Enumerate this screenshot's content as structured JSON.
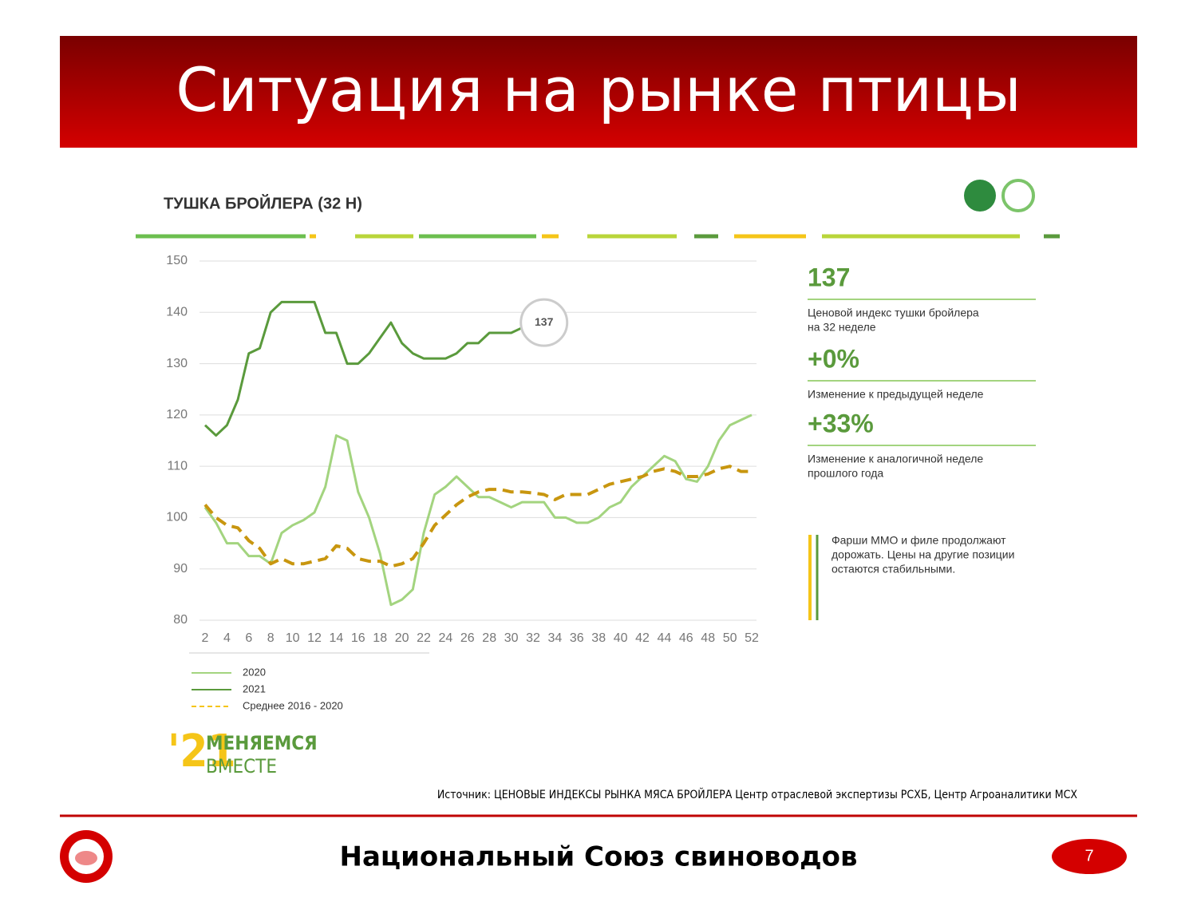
{
  "header": {
    "title": "Ситуация на рынке птицы"
  },
  "chart_data": {
    "type": "line",
    "title": "ТУШКА БРОЙЛЕРА (32 Н)",
    "x": [
      2,
      3,
      4,
      5,
      6,
      7,
      8,
      9,
      10,
      11,
      12,
      13,
      14,
      15,
      16,
      17,
      18,
      19,
      20,
      21,
      22,
      23,
      24,
      25,
      26,
      27,
      28,
      29,
      30,
      31,
      32,
      33,
      34,
      35,
      36,
      37,
      38,
      39,
      40,
      41,
      42,
      43,
      44,
      45,
      46,
      47,
      48,
      49,
      50,
      51,
      52
    ],
    "series": [
      {
        "name": "2020",
        "color": "#a3d47f",
        "dashed": false,
        "values": [
          102,
          99,
          95,
          95,
          92.5,
          92.5,
          91,
          97,
          98.5,
          99.5,
          101,
          106,
          116,
          115,
          105,
          100,
          93,
          83,
          84,
          86,
          97,
          104.5,
          106,
          108,
          106,
          104,
          104,
          103,
          102,
          103,
          103,
          103,
          100,
          100,
          99,
          99,
          100,
          102,
          103,
          106,
          108,
          110,
          112,
          111,
          107.5,
          107,
          110,
          115,
          118,
          119,
          120
        ]
      },
      {
        "name": "2021",
        "color": "#5a9a3c",
        "dashed": false,
        "values": [
          118,
          116,
          118,
          123,
          132,
          133,
          140,
          142,
          142,
          142,
          142,
          136,
          136,
          130,
          130,
          132,
          135,
          138,
          134,
          132,
          131,
          131,
          131,
          132,
          134,
          134,
          136,
          136,
          136,
          137,
          null,
          null,
          null,
          null,
          null,
          null,
          null,
          null,
          null,
          null,
          null,
          null,
          null,
          null,
          null,
          null,
          null,
          null,
          null,
          null,
          null
        ]
      },
      {
        "name": "Среднее 2016 - 2020",
        "color": "#c8960f",
        "dashed": true,
        "values": [
          102.5,
          100,
          98.5,
          98,
          95.5,
          94,
          91,
          92,
          91,
          91,
          91.5,
          92,
          94.5,
          94,
          92,
          91.5,
          91.5,
          90.5,
          91,
          92,
          95,
          98.5,
          100.5,
          102.5,
          104,
          105,
          105.5,
          105.5,
          105,
          105,
          104.8,
          104.5,
          103.5,
          104.5,
          104.5,
          104.5,
          105.5,
          106.5,
          107,
          107.5,
          108,
          109,
          109.5,
          109,
          108,
          108,
          108.5,
          109.5,
          110,
          109,
          109
        ]
      }
    ],
    "xlim": [
      2,
      52
    ],
    "xticks": [
      2,
      4,
      6,
      8,
      10,
      12,
      14,
      16,
      18,
      20,
      22,
      24,
      26,
      28,
      30,
      32,
      34,
      36,
      38,
      40,
      42,
      44,
      46,
      48,
      50,
      52
    ],
    "ylim": [
      80,
      150
    ],
    "yticks": [
      80,
      90,
      100,
      110,
      120,
      130,
      140,
      150
    ],
    "grid": true,
    "annotation": {
      "x": 33,
      "value": 138,
      "label": "137"
    }
  },
  "panel": {
    "stats": [
      {
        "value": "137",
        "text": [
          "Ценовой индекс тушки бройлера",
          "на 32 неделе"
        ]
      },
      {
        "value": "+0%",
        "text": [
          "Изменение к предыдущей неделе"
        ]
      },
      {
        "value": "+33%",
        "text": [
          "Изменение к аналогичной неделе",
          "прошлого года"
        ]
      }
    ],
    "note": [
      "Фарши ММО и филе продолжают",
      "дорожать. Цены на другие позиции",
      "остаются стабильными."
    ]
  },
  "logo": {
    "year": "'21",
    "line1": "МЕНЯЕМСЯ",
    "line2": "ВМЕСТЕ"
  },
  "source": "Источник: ЦЕНОВЫЕ ИНДЕКСЫ РЫНКА МЯСА БРОЙЛЕРА  Центр отраслевой экспертизы РСХБ, Центр Агроаналитики МСХ",
  "footer": {
    "org": "Национальный Союз свиноводов",
    "page": "7"
  }
}
